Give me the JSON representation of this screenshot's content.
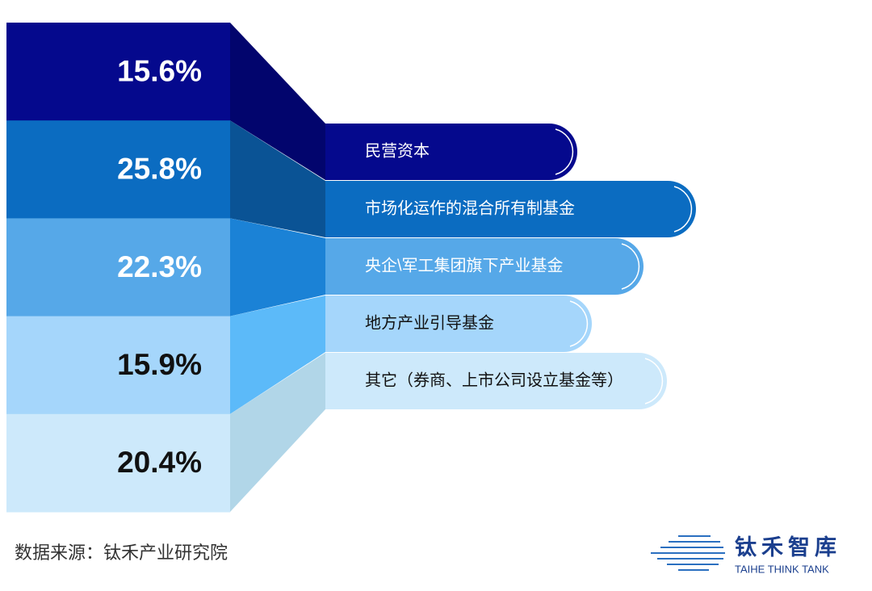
{
  "chart_data": {
    "type": "funnel",
    "categories": [
      "民营资本",
      "市场化运作的混合所有制基金",
      "央企\\军工集团旗下产业基金",
      "地方产业引导基金",
      "其它（券商、上市公司设立基金等）"
    ],
    "values": [
      15.6,
      25.8,
      22.3,
      15.9,
      20.4
    ],
    "value_labels": [
      "15.6%",
      "25.8%",
      "22.3%",
      "15.9%",
      "20.4%"
    ],
    "colors": [
      "#05098d",
      "#0b6cc1",
      "#56a8e8",
      "#a5d6fb",
      "#cde9fb"
    ],
    "connector_colors": [
      "#02056d",
      "#0a5395",
      "#1b82d6",
      "#5cbaf9",
      "#b1d6e8"
    ]
  },
  "footer": {
    "source": "数据来源：钛禾产业研究院",
    "logo_name": "钛禾智库",
    "logo_en": "TAIHE THINK TANK"
  }
}
